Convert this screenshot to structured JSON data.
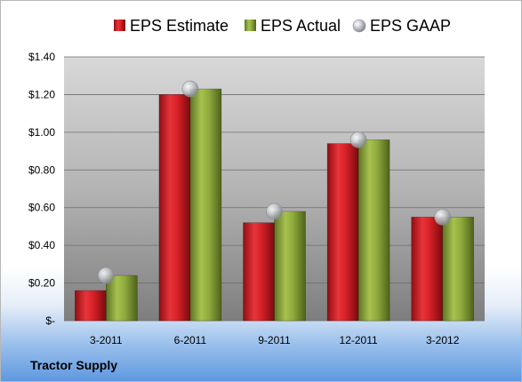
{
  "company_label": "Tractor Supply",
  "chart_data": {
    "type": "bar",
    "title": "",
    "xlabel": "",
    "ylabel": "",
    "categories": [
      "3-2011",
      "6-2011",
      "9-2011",
      "12-2011",
      "3-2012"
    ],
    "series": [
      {
        "name": "EPS Estimate",
        "kind": "bar",
        "color": "#d42026",
        "values": [
          0.16,
          1.2,
          0.52,
          0.94,
          0.55
        ]
      },
      {
        "name": "EPS Actual",
        "kind": "bar",
        "color": "#8faa3c",
        "values": [
          0.24,
          1.23,
          0.58,
          0.96,
          0.55
        ]
      },
      {
        "name": "EPS GAAP",
        "kind": "marker",
        "color": "#b9bec4",
        "values": [
          0.24,
          1.23,
          0.58,
          0.96,
          0.55
        ]
      }
    ],
    "ylim": [
      0,
      1.4
    ],
    "y_ticks": [
      0,
      0.2,
      0.4,
      0.6,
      0.8,
      1.0,
      1.2,
      1.4
    ],
    "y_tick_labels": [
      "$-",
      "$0.20",
      "$0.40",
      "$0.60",
      "$0.80",
      "$1.00",
      "$1.20",
      "$1.40"
    ],
    "grid": true,
    "legend_position": "top"
  }
}
